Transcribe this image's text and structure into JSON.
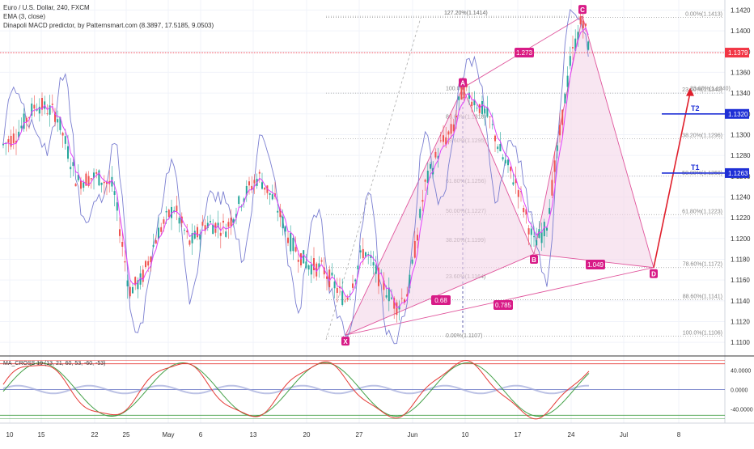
{
  "header": {
    "symbol": "Euro / U.S. Dollar, 240, FXCM",
    "indicator_ema": "EMA (3, close)",
    "indicator_macd": "Dinapoli MACD predictor, by Patternsmart.com (8.3897, 17.5185, 9.0503)",
    "oscillator_label": "MA_CROSS 19 (13, 21, 60, 53, -60, -53)"
  },
  "colors": {
    "up_candle": "#26a69a",
    "down_candle": "#ef5350",
    "ema": "#e040fb",
    "band": "#7b7fd1",
    "pattern": "#e0559c",
    "pattern_fill": "#f3d6e8",
    "target_blue": "#1e2fd6",
    "arrow_red": "#e01e2b",
    "price_badge": "#f23645",
    "label_magenta": "#d81b87"
  },
  "chart_data": {
    "type": "candlestick",
    "x_labels": [
      "10",
      "15",
      "22",
      "25",
      "May",
      "6",
      "13",
      "20",
      "27",
      "Jun",
      "10",
      "17",
      "24",
      "Jul",
      "8"
    ],
    "y_ticks": [
      "1.1420",
      "1.1400",
      "1.1380",
      "1.1360",
      "1.1340",
      "1.1320",
      "1.1300",
      "1.1280",
      "1.1260",
      "1.1240",
      "1.1220",
      "1.1200",
      "1.1180",
      "1.1160",
      "1.1140",
      "1.1120",
      "1.1100"
    ],
    "y_range": [
      1.109,
      1.1425
    ],
    "current_price": "1.1379",
    "targets": [
      {
        "label": "T2",
        "value": "1.1320"
      },
      {
        "label": "T1",
        "value": "1.1263"
      }
    ],
    "pattern_points": [
      {
        "label": "X",
        "price": 1.1107
      },
      {
        "label": "A",
        "price": 1.1345
      },
      {
        "label": "B",
        "price": 1.1185
      },
      {
        "label": "C",
        "price": 1.1414
      },
      {
        "label": "D",
        "price": 1.1172
      }
    ],
    "pattern_ratios": [
      "1.273",
      "0.68",
      "0.785",
      "1.049"
    ],
    "fib_left": [
      "100.0%",
      "88.60%(1.1318)",
      "78.60%(1.1295)",
      "61.80%(1.1256)",
      "50.00%(1.1227)",
      "38.20%(1.1199)",
      "23.60%(1.1164)",
      "0.00%(1.1107)"
    ],
    "fib_right": [
      "0.00%(1.1413)",
      "23.60%(1.1340)",
      "38.20%(1.1296)",
      "50.00%(1.1260)",
      "61.80%(1.1223)",
      "78.60%(1.1172)",
      "88.60%(1.1141)",
      "100.0%(1.1106)"
    ],
    "fib_top": "127.20%(1.1414)",
    "oscillator_ticks": [
      "40.0000",
      "0.0000",
      "-40.0000"
    ]
  }
}
